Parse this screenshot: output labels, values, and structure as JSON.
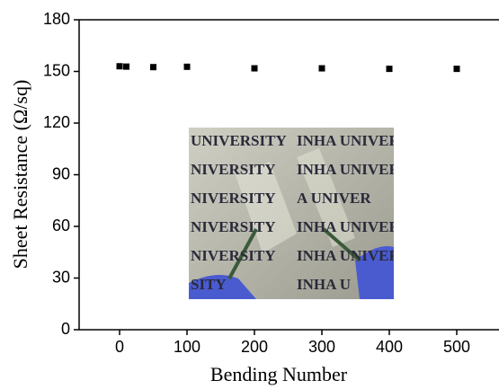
{
  "chart_data": {
    "type": "scatter",
    "xlabel": "Bending Number",
    "ylabel": "Sheet Resistance (Ω/sq)",
    "x": [
      0,
      10,
      50,
      100,
      200,
      300,
      400,
      500
    ],
    "values": [
      153,
      152.8,
      152.5,
      152.7,
      151.8,
      151.8,
      151.5,
      151.5
    ],
    "color": "#000000",
    "xlim": [
      -60,
      560
    ],
    "xticks": [
      0,
      100,
      200,
      300,
      400,
      500
    ],
    "ylim": [
      0,
      180
    ],
    "yticks": [
      0,
      30,
      60,
      90,
      120,
      150,
      180
    ]
  },
  "inset": {
    "rows": [
      [
        "UNIVERSITY",
        "INHA UNIVER"
      ],
      [
        "NIVERSITY",
        "INHA UNIVER"
      ],
      [
        "NIVERSITY",
        "A UNIVER"
      ],
      [
        "NIVERSITY",
        "INHA UNIVER"
      ],
      [
        "NIVERSITY",
        "INHA UNIVER"
      ],
      [
        "SITY",
        "INHA U"
      ]
    ]
  }
}
